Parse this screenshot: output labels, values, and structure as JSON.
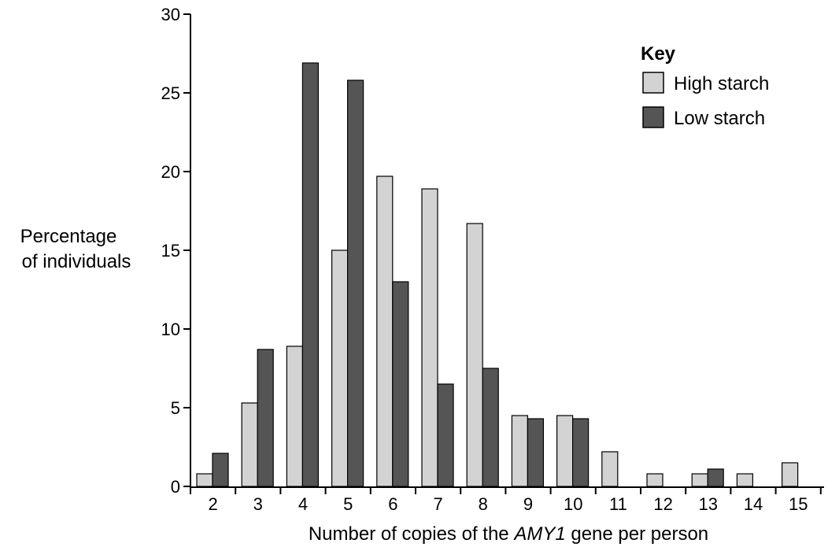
{
  "chart_data": {
    "type": "bar",
    "title": "",
    "ylabel_lines": [
      "Percentage",
      "of individuals"
    ],
    "xlabel": {
      "before": "Number of copies of the ",
      "italic": "AMY1",
      "after": " gene per person"
    },
    "categories": [
      "2",
      "3",
      "4",
      "5",
      "6",
      "7",
      "8",
      "9",
      "10",
      "11",
      "12",
      "13",
      "14",
      "15"
    ],
    "ylim": [
      0,
      30
    ],
    "yticks": [
      "0",
      "5",
      "10",
      "15",
      "20",
      "25",
      "30"
    ],
    "grid": false,
    "legend_title": "Key",
    "legend_position": "top-right",
    "series": [
      {
        "name": "High starch",
        "color": "#d3d3d3",
        "values": [
          0.8,
          5.3,
          8.9,
          15.0,
          19.7,
          18.9,
          16.7,
          4.5,
          4.5,
          2.2,
          0.8,
          0.8,
          0.8,
          1.5
        ]
      },
      {
        "name": "Low starch",
        "color": "#555555",
        "values": [
          2.1,
          8.7,
          26.9,
          25.8,
          13.0,
          6.5,
          7.5,
          4.3,
          4.3,
          0,
          0,
          1.1,
          0,
          0
        ]
      }
    ]
  }
}
